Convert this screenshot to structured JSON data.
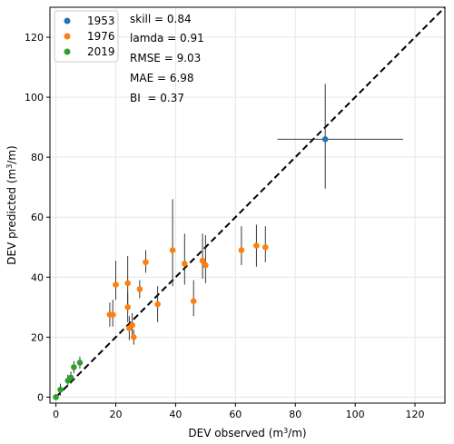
{
  "chart_data": {
    "type": "scatter",
    "xlabel": "DEV observed (m$^3$/m)",
    "ylabel": "DEV predicted (m$^3$/m)",
    "xlabel_parts": [
      "DEV observed (m",
      "3",
      "/m)"
    ],
    "ylabel_parts": [
      "DEV predicted (m",
      "3",
      "/m)"
    ],
    "xlim": [
      -2,
      130
    ],
    "ylim": [
      -2,
      130
    ],
    "xticks": [
      0,
      20,
      40,
      60,
      80,
      100,
      120
    ],
    "yticks": [
      0,
      20,
      40,
      60,
      80,
      100,
      120
    ],
    "grid": true,
    "legend_position": "top-left",
    "reference_line": {
      "style": "dashed",
      "color": "#000000",
      "from": [
        0,
        0
      ],
      "to": [
        130,
        130
      ]
    },
    "stats": [
      "skill = 0.84",
      "lamda = 0.91",
      "RMSE = 9.03",
      "MAE = 6.98",
      "BI  = 0.37"
    ],
    "series": [
      {
        "name": "1953",
        "color": "#1f77b4",
        "points": [
          {
            "x": 90,
            "y": 86,
            "xerr": [
              16,
              26
            ],
            "yerr": [
              16.5,
              18.5
            ]
          }
        ]
      },
      {
        "name": "1976",
        "color": "#ff7f0e",
        "points": [
          {
            "x": 18,
            "y": 27.5,
            "yerr": [
              4,
              4
            ]
          },
          {
            "x": 19,
            "y": 27.5,
            "yerr": [
              4,
              5
            ]
          },
          {
            "x": 20,
            "y": 37.5,
            "yerr": [
              5,
              8
            ]
          },
          {
            "x": 24,
            "y": 38,
            "yerr": [
              8,
              9
            ]
          },
          {
            "x": 24,
            "y": 30,
            "yerr": [
              5,
              5
            ]
          },
          {
            "x": 24.5,
            "y": 23,
            "yerr": [
              4,
              4
            ]
          },
          {
            "x": 25.5,
            "y": 24,
            "yerr": [
              4,
              4
            ]
          },
          {
            "x": 26,
            "y": 20,
            "yerr": [
              2.5,
              2.5
            ]
          },
          {
            "x": 28,
            "y": 36,
            "yerr": [
              3,
              3
            ]
          },
          {
            "x": 30,
            "y": 45,
            "yerr": [
              3.5,
              4
            ]
          },
          {
            "x": 34,
            "y": 31,
            "yerr": [
              6,
              6
            ]
          },
          {
            "x": 39,
            "y": 49,
            "yerr": [
              12,
              17
            ]
          },
          {
            "x": 43,
            "y": 44.5,
            "yerr": [
              7,
              10
            ]
          },
          {
            "x": 46,
            "y": 32,
            "yerr": [
              5,
              7
            ]
          },
          {
            "x": 49,
            "y": 45.5,
            "yerr": [
              6,
              9
            ]
          },
          {
            "x": 50,
            "y": 44,
            "yerr": [
              6,
              10
            ]
          },
          {
            "x": 62,
            "y": 49,
            "yerr": [
              5,
              8
            ]
          },
          {
            "x": 67,
            "y": 50.5,
            "yerr": [
              7,
              7
            ]
          },
          {
            "x": 70,
            "y": 50,
            "yerr": [
              5,
              7
            ]
          }
        ]
      },
      {
        "name": "2019",
        "color": "#2ca02c",
        "points": [
          {
            "x": 0,
            "y": 0,
            "yerr": [
              1,
              1
            ]
          },
          {
            "x": 1.5,
            "y": 2.5,
            "yerr": [
              2,
              2
            ]
          },
          {
            "x": 4,
            "y": 5.5,
            "yerr": [
              2,
              2
            ]
          },
          {
            "x": 5,
            "y": 6.5,
            "yerr": [
              2,
              2
            ]
          },
          {
            "x": 6,
            "y": 10,
            "yerr": [
              2,
              2
            ]
          },
          {
            "x": 8,
            "y": 11.5,
            "yerr": [
              2,
              2
            ]
          }
        ]
      }
    ]
  }
}
